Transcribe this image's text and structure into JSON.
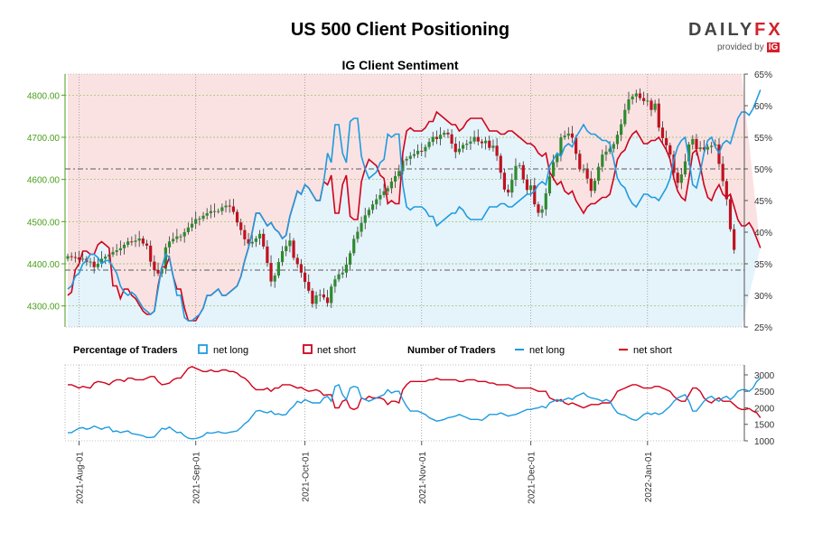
{
  "header": {
    "title": "US 500 Client Positioning",
    "logo_main": "DAILY",
    "logo_accent": "FX",
    "logo_sub": "provided by",
    "logo_badge": "IG"
  },
  "legend": {
    "pct_label": "Percentage of Traders",
    "pct_long": "net long",
    "pct_short": "net short",
    "num_label": "Number of Traders",
    "num_long": "net long",
    "num_short": "net short"
  },
  "colors": {
    "long": "#1e9be0",
    "short": "#d0021b",
    "up": "#2e8b2e",
    "down": "#c0111f",
    "long_fill": "#e5f3fb",
    "short_fill": "#fbe2e2",
    "price_axis": "#4a9e1a"
  },
  "chart_data": [
    {
      "type": "candlestick",
      "title": "IG Client Sentiment",
      "x_ticks": [
        "2021-Aug-01",
        "2021-Sep-01",
        "2021-Oct-01",
        "2021-Nov-01",
        "2021-Dec-01",
        "2022-Jan-01"
      ],
      "x_tick_index": [
        3,
        34,
        63,
        94,
        123,
        154
      ],
      "x_count": 180,
      "ylim": [
        4250,
        4850
      ],
      "yticks": [
        4300,
        4400,
        4500,
        4600,
        4700,
        4800
      ],
      "ytick_labels": [
        "4300.00",
        "4400.00",
        "4500.00",
        "4600.00",
        "4700.00",
        "4800.00"
      ],
      "close": [
        4418,
        4416,
        4415,
        4410,
        4412,
        4404,
        4405,
        4392,
        4400,
        4412,
        4417,
        4422,
        4428,
        4432,
        4437,
        4445,
        4453,
        4452,
        4455,
        4460,
        4448,
        4443,
        4405,
        4385,
        4377,
        4388,
        4439,
        4453,
        4459,
        4465,
        4465,
        4475,
        4486,
        4495,
        4506,
        4507,
        4514,
        4520,
        4525,
        4525,
        4525,
        4534,
        4538,
        4536,
        4523,
        4498,
        4480,
        4458,
        4448,
        4452,
        4460,
        4471,
        4441,
        4402,
        4358,
        4372,
        4404,
        4430,
        4442,
        4455,
        4414,
        4399,
        4379,
        4357,
        4336,
        4305,
        4325,
        4327,
        4320,
        4307,
        4346,
        4363,
        4375,
        4379,
        4398,
        4425,
        4459,
        4476,
        4497,
        4515,
        4528,
        4541,
        4553,
        4563,
        4572,
        4579,
        4595,
        4608,
        4620,
        4645,
        4649,
        4656,
        4660,
        4668,
        4667,
        4677,
        4689,
        4701,
        4696,
        4706,
        4711,
        4707,
        4685,
        4665,
        4673,
        4682,
        4685,
        4690,
        4701,
        4690,
        4686,
        4692,
        4675,
        4680,
        4656,
        4616,
        4576,
        4569,
        4599,
        4632,
        4634,
        4600,
        4575,
        4586,
        4541,
        4521,
        4529,
        4567,
        4607,
        4641,
        4658,
        4700,
        4704,
        4709,
        4699,
        4661,
        4624,
        4624,
        4602,
        4573,
        4597,
        4630,
        4659,
        4666,
        4673,
        4684,
        4706,
        4731,
        4765,
        4790,
        4797,
        4804,
        4793,
        4786,
        4787,
        4765,
        4780,
        4723,
        4698,
        4681,
        4659,
        4616,
        4592,
        4612,
        4643,
        4683,
        4696,
        4672,
        4676,
        4671,
        4677,
        4680,
        4683,
        4637,
        4596,
        4553,
        4482,
        4433
      ],
      "sentiment": {
        "ylim": [
          25,
          65
        ],
        "yticks": [
          25,
          30,
          35,
          40,
          45,
          50,
          55,
          60,
          65
        ],
        "ytick_labels": [
          "25%",
          "30%",
          "35%",
          "40%",
          "45%",
          "50%",
          "55%",
          "60%",
          "65%"
        ],
        "net_long_pct": [
          31,
          31.5,
          33,
          33.5,
          35,
          35.5,
          36.5,
          36.5,
          36,
          35,
          35.5,
          35.5,
          34.5,
          33.5,
          31.5,
          30.5,
          30,
          30.5,
          30,
          29,
          28,
          27.5,
          27,
          27.5,
          31,
          34.5,
          36.5,
          36,
          33,
          30,
          30,
          26.5,
          26,
          26,
          26.5,
          27,
          28,
          30,
          30,
          30.5,
          31,
          30,
          30,
          30.5,
          31,
          31.5,
          33,
          35.5,
          37.5,
          40,
          43,
          43,
          42,
          41,
          41.5,
          40.5,
          40,
          39,
          39.5,
          42.5,
          44.5,
          46.5,
          46,
          47.5,
          47,
          46,
          45,
          45,
          48,
          52.5,
          51,
          57,
          57,
          52.5,
          51,
          57.5,
          58,
          58,
          52,
          50,
          48.5,
          49,
          49.5,
          51,
          51.5,
          55.5,
          55,
          55.5,
          55.5,
          47.5,
          44,
          43.5,
          44,
          44,
          44,
          43.5,
          42.5,
          42.5,
          41,
          41.5,
          42,
          42.5,
          43,
          43,
          44,
          43.5,
          42.5,
          42,
          42,
          42,
          42,
          43,
          44,
          44,
          44,
          44.5,
          44.5,
          44,
          44,
          44.5,
          45,
          45.5,
          46,
          46,
          46.5,
          47.5,
          48,
          47.5,
          50.5,
          51.5,
          52.5,
          52,
          53.5,
          54,
          53.5,
          55,
          56,
          57,
          56,
          55.5,
          55.5,
          55,
          54.5,
          54.5,
          54,
          51.5,
          48.5,
          47.5,
          47,
          45.5,
          44.5,
          44,
          45,
          46,
          46,
          45.5,
          45.5,
          45,
          46,
          47,
          48.5,
          51.5,
          53.5,
          54.5,
          55,
          51.5,
          47.5,
          47,
          49.5,
          52.5,
          54.5,
          55,
          53.5,
          52.5,
          54,
          54.5,
          54,
          56,
          58,
          59,
          59,
          58.5,
          59.5,
          61,
          62.5
        ],
        "net_short_pct": [
          30,
          30.5,
          34,
          35,
          37,
          37,
          36.5,
          36.5,
          38,
          38.5,
          38,
          37.5,
          31.5,
          31.5,
          29.5,
          31,
          31,
          30,
          29.5,
          28.5,
          27.5,
          27,
          27,
          27.5,
          31.5,
          34.5,
          34.5,
          36,
          33,
          31,
          31,
          28,
          26,
          26,
          26,
          27,
          28,
          30,
          30,
          30.5,
          31,
          30,
          30,
          30.5,
          31,
          31.5,
          33,
          35.5,
          37.5,
          40,
          43,
          43,
          42,
          41,
          41.5,
          40.5,
          40,
          39,
          39.5,
          42.5,
          44.5,
          46.5,
          46,
          47.5,
          47,
          46,
          45,
          45,
          48,
          47.5,
          49,
          43,
          43,
          47.5,
          49,
          42.5,
          42,
          42,
          48,
          50,
          51.5,
          51,
          50.5,
          49,
          48.5,
          44.5,
          45,
          44.5,
          44.5,
          52.5,
          56,
          56.5,
          56,
          56,
          56,
          56.5,
          57.5,
          57.5,
          59,
          58.5,
          58,
          57.5,
          57,
          57,
          56,
          56.5,
          57.5,
          58,
          58,
          58,
          58,
          57,
          56,
          56,
          56,
          55.5,
          55.5,
          56,
          56,
          55.5,
          55,
          54.5,
          54,
          54,
          53.5,
          52.5,
          52,
          52.5,
          49.5,
          48.5,
          47.5,
          48,
          46.5,
          46,
          46.5,
          45,
          44,
          43,
          44,
          44.5,
          44.5,
          45,
          45.5,
          45.5,
          46,
          48.5,
          51.5,
          52.5,
          53,
          54.5,
          55.5,
          56,
          55,
          54,
          54,
          54.5,
          54.5,
          55,
          54,
          53,
          51.5,
          48.5,
          46.5,
          45.5,
          45,
          48.5,
          52.5,
          53,
          50.5,
          47.5,
          45.5,
          45,
          46.5,
          47.5,
          46,
          45.5,
          46,
          44,
          42,
          41,
          41,
          41.5,
          40.5,
          39,
          37.5
        ],
        "ref_upper_pct": 50,
        "ref_lower_pct": 34
      }
    },
    {
      "type": "line",
      "title": "Number of Traders",
      "ylim": [
        1000,
        3300
      ],
      "yticks": [
        1000,
        1500,
        2000,
        2500,
        3000
      ],
      "ytick_labels": [
        "1000",
        "1500",
        "2000",
        "2500",
        "3000"
      ],
      "series": [
        {
          "name": "net long",
          "values": [
            1250,
            1250,
            1320,
            1380,
            1400,
            1350,
            1380,
            1450,
            1400,
            1350,
            1400,
            1420,
            1280,
            1300,
            1250,
            1280,
            1300,
            1220,
            1200,
            1180,
            1150,
            1100,
            1100,
            1120,
            1250,
            1380,
            1350,
            1420,
            1330,
            1250,
            1260,
            1150,
            1080,
            1060,
            1070,
            1100,
            1150,
            1250,
            1230,
            1250,
            1280,
            1240,
            1230,
            1260,
            1280,
            1300,
            1400,
            1520,
            1600,
            1750,
            1900,
            1920,
            1880,
            1850,
            1900,
            1800,
            1820,
            1780,
            1800,
            1950,
            2050,
            2200,
            2150,
            2250,
            2200,
            2150,
            2150,
            2150,
            2300,
            2350,
            2200,
            2650,
            2700,
            2400,
            2250,
            2600,
            2650,
            2620,
            2300,
            2250,
            2200,
            2250,
            2300,
            2350,
            2400,
            2550,
            2450,
            2500,
            2500,
            2250,
            2050,
            1900,
            1900,
            1900,
            1850,
            1800,
            1700,
            1650,
            1600,
            1620,
            1650,
            1700,
            1720,
            1750,
            1800,
            1750,
            1700,
            1650,
            1650,
            1650,
            1620,
            1700,
            1800,
            1800,
            1800,
            1850,
            1800,
            1750,
            1780,
            1800,
            1850,
            1900,
            1950,
            1950,
            1980,
            2000,
            2050,
            2000,
            2150,
            2200,
            2250,
            2200,
            2250,
            2300,
            2250,
            2350,
            2400,
            2450,
            2350,
            2300,
            2280,
            2250,
            2200,
            2250,
            2200,
            2000,
            1850,
            1800,
            1780,
            1700,
            1650,
            1620,
            1700,
            1800,
            1850,
            1800,
            1850,
            1800,
            1850,
            1950,
            2050,
            2200,
            2300,
            2350,
            2400,
            2200,
            1900,
            1900,
            2050,
            2200,
            2300,
            2350,
            2250,
            2200,
            2300,
            2350,
            2250,
            2350,
            2500,
            2550,
            2550,
            2500,
            2600,
            2800,
            2900
          ]
        },
        {
          "name": "net short",
          "values": [
            2700,
            2700,
            2650,
            2600,
            2650,
            2620,
            2600,
            2750,
            2800,
            2780,
            2750,
            2700,
            2800,
            2850,
            2850,
            2800,
            2900,
            2900,
            2850,
            2850,
            2850,
            2900,
            2950,
            2950,
            2800,
            2700,
            2720,
            2750,
            2850,
            2900,
            2900,
            3050,
            3200,
            3250,
            3200,
            3150,
            3100,
            3100,
            3150,
            3100,
            3100,
            3150,
            3150,
            3100,
            3100,
            3050,
            2950,
            2900,
            2800,
            2650,
            2550,
            2550,
            2550,
            2600,
            2500,
            2600,
            2600,
            2700,
            2700,
            2700,
            2650,
            2600,
            2620,
            2550,
            2500,
            2520,
            2550,
            2500,
            2380,
            2400,
            2400,
            2000,
            2000,
            2200,
            2250,
            2000,
            1950,
            2000,
            2300,
            2250,
            2350,
            2300,
            2300,
            2300,
            2250,
            2100,
            2200,
            2200,
            2150,
            2550,
            2700,
            2800,
            2800,
            2800,
            2800,
            2800,
            2850,
            2850,
            2900,
            2850,
            2850,
            2850,
            2850,
            2850,
            2800,
            2800,
            2850,
            2850,
            2850,
            2800,
            2800,
            2800,
            2750,
            2750,
            2700,
            2700,
            2700,
            2700,
            2650,
            2600,
            2600,
            2600,
            2600,
            2600,
            2550,
            2500,
            2500,
            2500,
            2300,
            2250,
            2200,
            2250,
            2150,
            2100,
            2150,
            2100,
            2050,
            2000,
            2050,
            2100,
            2100,
            2100,
            2150,
            2150,
            2150,
            2300,
            2500,
            2550,
            2600,
            2650,
            2700,
            2700,
            2650,
            2600,
            2600,
            2600,
            2650,
            2650,
            2600,
            2550,
            2500,
            2350,
            2250,
            2200,
            2200,
            2400,
            2600,
            2600,
            2500,
            2300,
            2200,
            2150,
            2250,
            2300,
            2200,
            2200,
            2200,
            2100,
            2000,
            1950,
            1950,
            1980,
            1900,
            1850,
            1700
          ]
        }
      ]
    }
  ]
}
